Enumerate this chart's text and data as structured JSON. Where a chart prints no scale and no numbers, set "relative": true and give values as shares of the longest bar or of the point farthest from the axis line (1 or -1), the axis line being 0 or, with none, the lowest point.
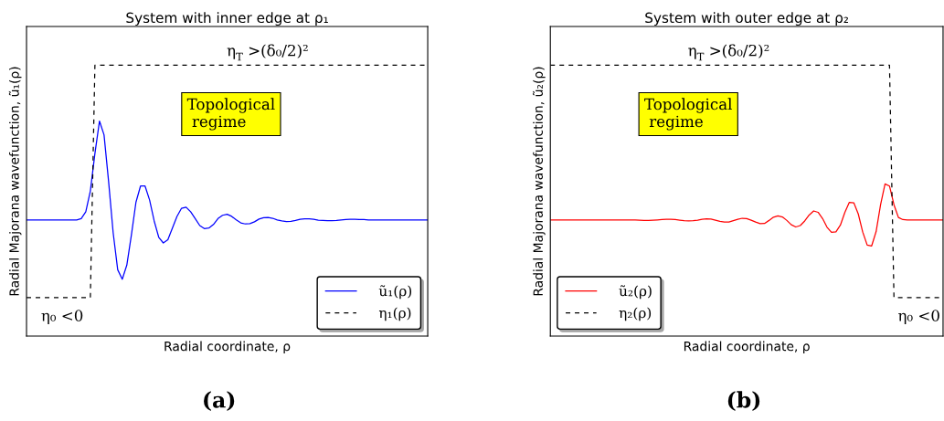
{
  "chart_data": [
    {
      "type": "line",
      "relative": true,
      "title": "System with inner edge at ρ₁",
      "xlabel": "Radial coordinate, ρ",
      "ylabel": "Radial Majorana wavefunction, ũ₁(ρ)",
      "tick_labels": false,
      "legend": "bottom right",
      "annotations": [
        "η$_{T}$ >(δ₀/2)²",
        "Topological\n regime",
        "η₀ <0",
        "(a)"
      ],
      "categories": [
        null,
        null,
        null,
        null,
        null,
        null,
        null,
        null,
        null,
        null,
        null,
        null,
        null,
        null,
        null,
        null,
        null,
        null,
        null,
        null,
        null,
        null,
        null,
        null,
        null,
        null,
        null,
        null,
        null,
        null,
        null,
        null,
        null,
        null,
        null,
        null,
        null,
        null,
        null,
        null,
        null,
        null,
        null,
        null,
        null,
        null,
        null,
        null,
        null,
        null,
        null,
        null,
        null,
        null,
        null,
        null,
        null,
        null,
        null,
        null,
        null,
        null,
        null,
        null,
        null,
        null,
        null,
        null,
        null,
        null,
        null,
        null,
        null,
        null,
        null,
        null,
        null,
        null,
        null,
        null,
        null,
        null,
        null,
        null,
        null,
        null,
        null,
        null,
        null
      ],
      "series": [
        {
          "name": "ũ₁(ρ)",
          "color": "#0000ff",
          "line_style": "solid",
          "values": [
            0.429,
            0.429,
            0.429,
            0.429,
            0.429,
            0.429,
            0.429,
            0.429,
            0.429,
            0.429,
            0.429,
            0.429,
            0.434,
            0.459,
            0.536,
            0.674,
            0.794,
            0.743,
            0.571,
            0.382,
            0.245,
            0.21,
            0.262,
            0.373,
            0.494,
            0.554,
            0.554,
            0.502,
            0.425,
            0.365,
            0.344,
            0.356,
            0.399,
            0.442,
            0.472,
            0.476,
            0.459,
            0.434,
            0.408,
            0.397,
            0.399,
            0.412,
            0.434,
            0.446,
            0.45,
            0.442,
            0.429,
            0.418,
            0.414,
            0.415,
            0.422,
            0.432,
            0.437,
            0.438,
            0.435,
            0.429,
            0.425,
            0.423,
            0.424,
            0.427,
            0.431,
            0.433,
            0.433,
            0.431,
            0.428,
            0.427,
            0.426,
            0.426,
            0.427,
            0.429,
            0.43,
            0.431,
            0.431,
            0.43,
            0.43,
            0.429,
            0.429,
            0.429,
            0.429,
            0.429,
            0.429,
            0.429,
            0.429,
            0.429,
            0.429,
            0.429,
            0.429,
            0.429,
            0.429
          ]
        },
        {
          "name": "η₁(ρ)",
          "color": "#000000",
          "line_style": "dashed",
          "values": [
            0.142,
            0.142,
            0.142,
            0.142,
            0.142,
            0.142,
            0.142,
            0.142,
            0.142,
            0.142,
            0.142,
            0.142,
            0.142,
            0.142,
            0.142,
            1,
            1,
            1,
            1,
            1,
            1,
            1,
            1,
            1,
            1,
            1,
            1,
            1,
            1,
            1,
            1,
            1,
            1,
            1,
            1,
            1,
            1,
            1,
            1,
            1,
            1,
            1,
            1,
            1,
            1,
            1,
            1,
            1,
            1,
            1,
            1,
            1,
            1,
            1,
            1,
            1,
            1,
            1,
            1,
            1,
            1,
            1,
            1,
            1,
            1,
            1,
            1,
            1,
            1,
            1,
            1,
            1,
            1,
            1,
            1,
            1,
            1,
            1,
            1,
            1,
            1,
            1,
            1,
            1,
            1,
            1,
            1,
            1,
            1
          ]
        }
      ]
    },
    {
      "type": "line",
      "relative": true,
      "title": "System with outer edge at ρ₂",
      "xlabel": "Radial coordinate, ρ",
      "ylabel": "Radial Majorana wavefunction, ũ₂(ρ)",
      "tick_labels": false,
      "legend": "bottom left",
      "annotations": [
        "η$_{T}$ >(δ₀/2)²",
        "Topological\n regime",
        "η₀ <0",
        "(b)"
      ],
      "categories": [
        null,
        null,
        null,
        null,
        null,
        null,
        null,
        null,
        null,
        null,
        null,
        null,
        null,
        null,
        null,
        null,
        null,
        null,
        null,
        null,
        null,
        null,
        null,
        null,
        null,
        null,
        null,
        null,
        null,
        null,
        null,
        null,
        null,
        null,
        null,
        null,
        null,
        null,
        null,
        null,
        null,
        null,
        null,
        null,
        null,
        null,
        null,
        null,
        null,
        null,
        null,
        null,
        null,
        null,
        null,
        null,
        null,
        null,
        null,
        null,
        null,
        null,
        null,
        null,
        null,
        null,
        null,
        null,
        null,
        null,
        null,
        null,
        null,
        null,
        null,
        null,
        null,
        null,
        null,
        null,
        null,
        null,
        null,
        null,
        null,
        null,
        null,
        null,
        null
      ],
      "series": [
        {
          "name": "ũ₂(ρ)",
          "color": "#ff0000",
          "line_style": "solid",
          "values": [
            0.429,
            0.429,
            0.429,
            0.429,
            0.429,
            0.429,
            0.429,
            0.429,
            0.429,
            0.429,
            0.429,
            0.429,
            0.429,
            0.429,
            0.429,
            0.429,
            0.429,
            0.429,
            0.429,
            0.429,
            0.428,
            0.427,
            0.427,
            0.428,
            0.429,
            0.43,
            0.431,
            0.431,
            0.43,
            0.428,
            0.426,
            0.425,
            0.426,
            0.428,
            0.431,
            0.433,
            0.432,
            0.428,
            0.424,
            0.421,
            0.421,
            0.426,
            0.431,
            0.435,
            0.434,
            0.428,
            0.421,
            0.415,
            0.416,
            0.427,
            0.439,
            0.444,
            0.44,
            0.427,
            0.411,
            0.403,
            0.408,
            0.425,
            0.447,
            0.462,
            0.457,
            0.434,
            0.402,
            0.383,
            0.385,
            0.41,
            0.457,
            0.494,
            0.492,
            0.451,
            0.384,
            0.336,
            0.333,
            0.386,
            0.485,
            0.562,
            0.554,
            0.485,
            0.438,
            0.43,
            0.429,
            0.429,
            0.429,
            0.429,
            0.429,
            0.429,
            0.429,
            0.429,
            0.429
          ]
        },
        {
          "name": "η₂(ρ)",
          "color": "#000000",
          "line_style": "dashed",
          "values": [
            1,
            1,
            1,
            1,
            1,
            1,
            1,
            1,
            1,
            1,
            1,
            1,
            1,
            1,
            1,
            1,
            1,
            1,
            1,
            1,
            1,
            1,
            1,
            1,
            1,
            1,
            1,
            1,
            1,
            1,
            1,
            1,
            1,
            1,
            1,
            1,
            1,
            1,
            1,
            1,
            1,
            1,
            1,
            1,
            1,
            1,
            1,
            1,
            1,
            1,
            1,
            1,
            1,
            1,
            1,
            1,
            1,
            1,
            1,
            1,
            1,
            1,
            1,
            1,
            1,
            1,
            1,
            1,
            1,
            1,
            1,
            1,
            1,
            1,
            1,
            1,
            1,
            0.142,
            0.142,
            0.142,
            0.142,
            0.142,
            0.142,
            0.142,
            0.142,
            0.142,
            0.142,
            0.142,
            0.142
          ]
        }
      ]
    }
  ]
}
